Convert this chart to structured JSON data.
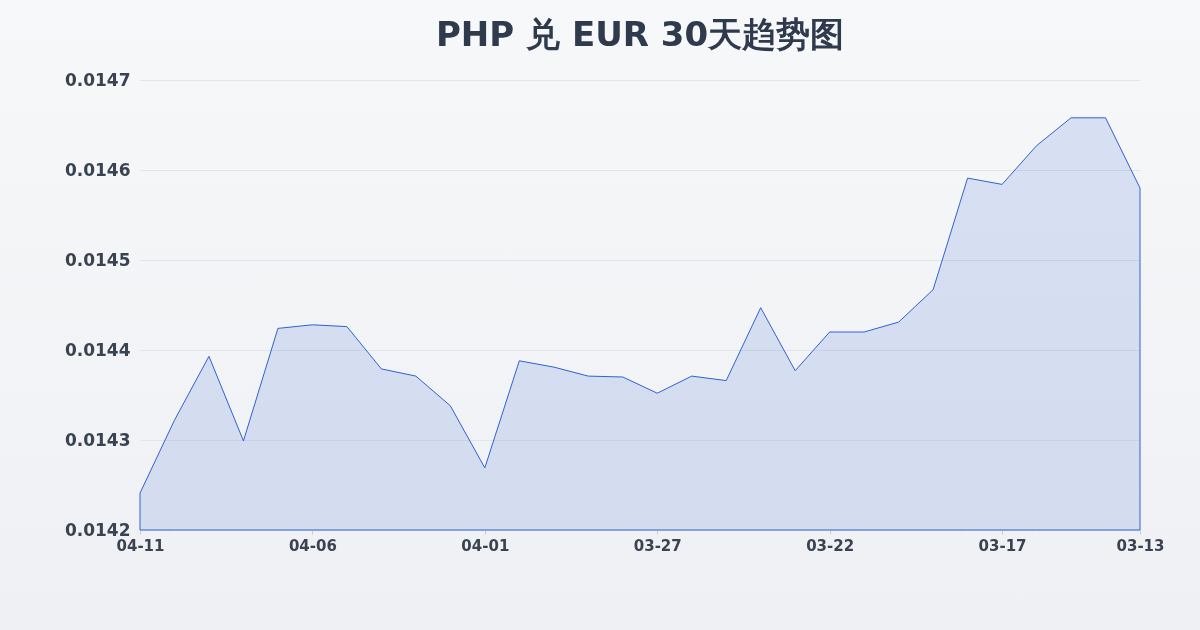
{
  "chart_data": {
    "type": "area",
    "title": "PHP 兑 EUR 30天趋势图",
    "categories": [
      "04-11",
      null,
      null,
      null,
      null,
      "04-06",
      null,
      null,
      null,
      null,
      "04-01",
      null,
      null,
      null,
      null,
      "03-27",
      null,
      null,
      null,
      null,
      "03-22",
      null,
      null,
      null,
      null,
      "03-17",
      null,
      null,
      null,
      "03-13"
    ],
    "series": [
      {
        "color": "#2f62d0",
        "values": [
          0.014241,
          0.014322,
          0.014393,
          0.014299,
          0.014424,
          0.014428,
          0.014426,
          0.014379,
          0.014371,
          0.014338,
          0.014269,
          0.014388,
          0.014381,
          0.014371,
          0.01437,
          0.014352,
          0.014371,
          0.014366,
          0.014447,
          0.014377,
          0.01442,
          0.01442,
          0.014431,
          0.014467,
          0.014591,
          0.014584,
          0.014627,
          0.014658,
          0.014658,
          0.01458
        ]
      }
    ],
    "ylim": [
      0.0142,
      0.0147
    ],
    "yticks": [
      0.0142,
      0.0143,
      0.0144,
      0.0145,
      0.0146,
      0.0147
    ],
    "grid": "y",
    "marker": "none",
    "legend": false
  }
}
